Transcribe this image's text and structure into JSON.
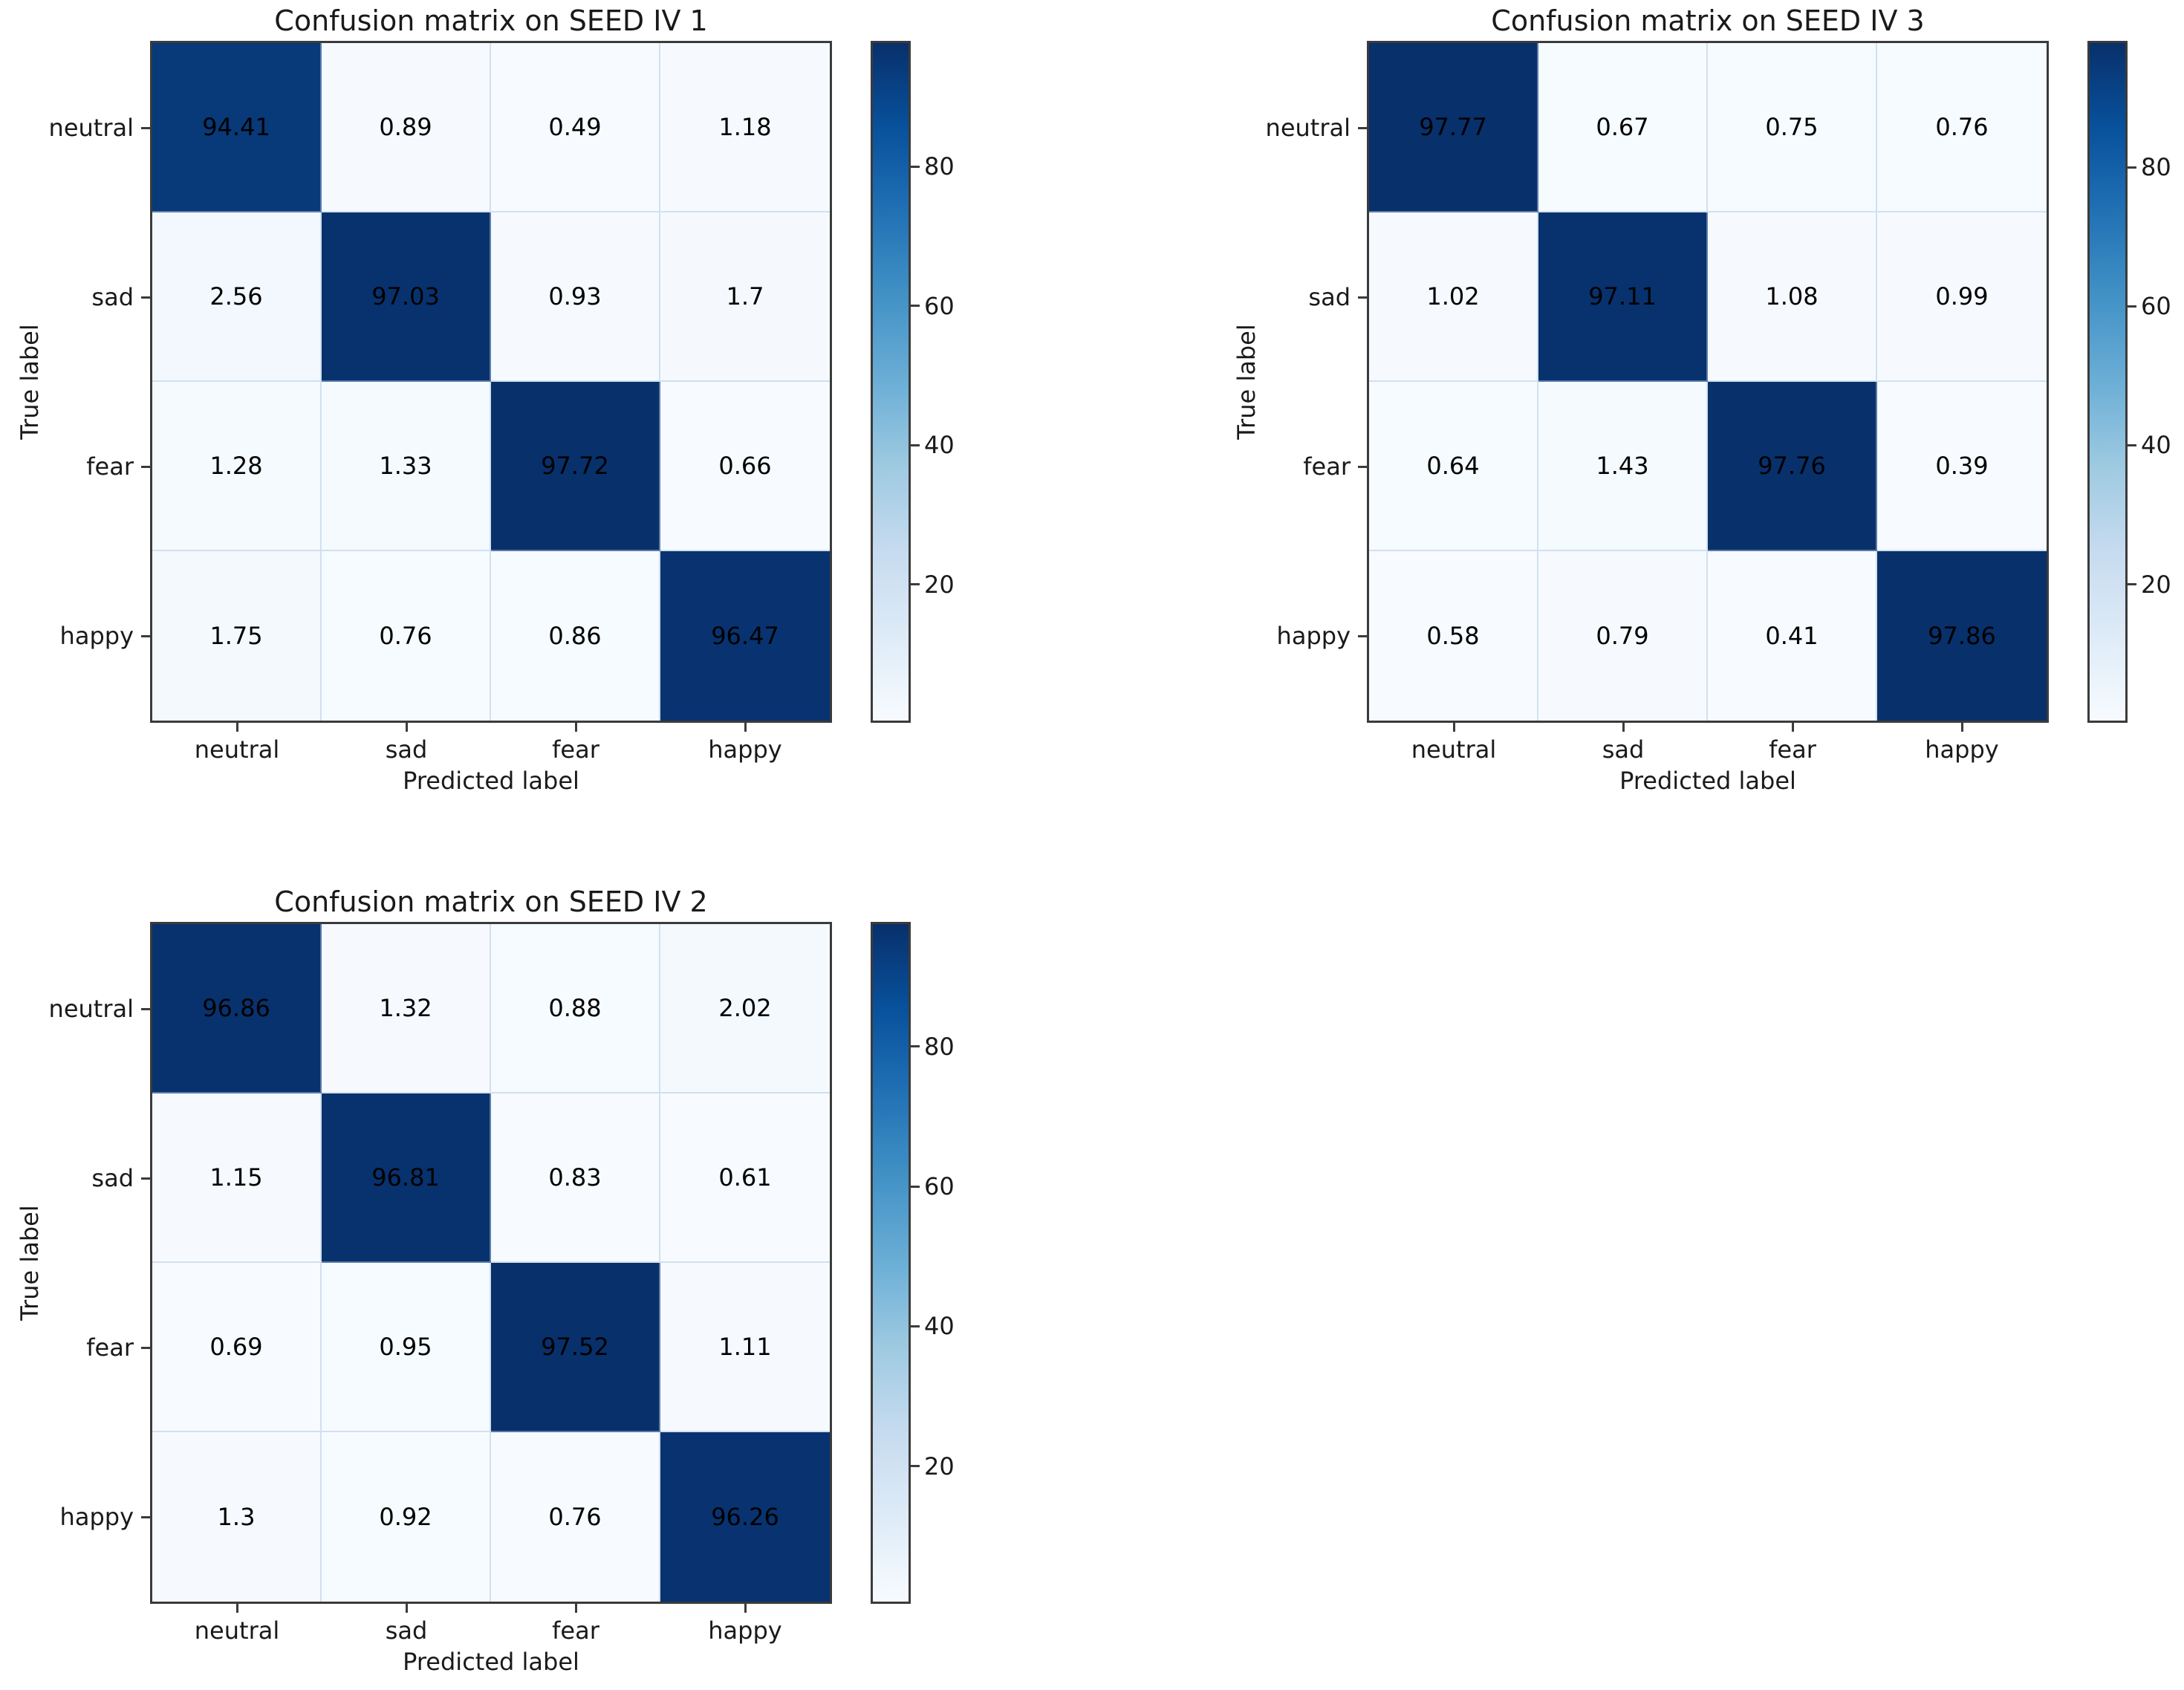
{
  "figure": {
    "background": "#ffffff",
    "layout": "2x2 grid, subplots at top-left, top-right, bottom-left; bottom-right empty"
  },
  "style": {
    "colormap": "Blues",
    "colormap_stops": [
      "#f7fbff",
      "#deebf7",
      "#c6dbef",
      "#9ecae1",
      "#6baed6",
      "#4292c6",
      "#2171b5",
      "#08519c",
      "#08306b"
    ],
    "spine_color": "#3b3b3b",
    "title_color": "#1a1a1a",
    "tick_label_color": "#1a1a1a",
    "cell_text_color": "#000000",
    "cell_seam_color": "rgba(173,197,224,0.5)"
  },
  "chart_data": [
    {
      "type": "heatmap",
      "title": "Confusion matrix on SEED IV 1",
      "position": "top-left",
      "xlabel": "Predicted label",
      "ylabel": "True label",
      "x_categories": [
        "neutral",
        "sad",
        "fear",
        "happy"
      ],
      "y_categories": [
        "neutral",
        "sad",
        "fear",
        "happy"
      ],
      "matrix": [
        [
          94.41,
          0.89,
          0.49,
          1.18
        ],
        [
          2.56,
          97.03,
          0.93,
          1.7
        ],
        [
          1.28,
          1.33,
          97.72,
          0.66
        ],
        [
          1.75,
          0.76,
          0.86,
          96.47
        ]
      ],
      "colorbar_ticks": [
        20,
        40,
        60,
        80
      ],
      "legend_position": "colorbar-right",
      "grid": false
    },
    {
      "type": "heatmap",
      "title": "Confusion matrix on SEED IV 3",
      "position": "top-right",
      "xlabel": "Predicted label",
      "ylabel": "True label",
      "x_categories": [
        "neutral",
        "sad",
        "fear",
        "happy"
      ],
      "y_categories": [
        "neutral",
        "sad",
        "fear",
        "happy"
      ],
      "matrix": [
        [
          97.77,
          0.67,
          0.75,
          0.76
        ],
        [
          1.02,
          97.11,
          1.08,
          0.99
        ],
        [
          0.64,
          1.43,
          97.76,
          0.39
        ],
        [
          0.58,
          0.79,
          0.41,
          97.86
        ]
      ],
      "colorbar_ticks": [
        20,
        40,
        60,
        80
      ],
      "legend_position": "colorbar-right",
      "grid": false
    },
    {
      "type": "heatmap",
      "title": "Confusion matrix on SEED IV 2",
      "position": "bottom-left",
      "xlabel": "Predicted label",
      "ylabel": "True label",
      "x_categories": [
        "neutral",
        "sad",
        "fear",
        "happy"
      ],
      "y_categories": [
        "neutral",
        "sad",
        "fear",
        "happy"
      ],
      "matrix": [
        [
          96.86,
          1.32,
          0.88,
          2.02
        ],
        [
          1.15,
          96.81,
          0.83,
          0.61
        ],
        [
          0.69,
          0.95,
          97.52,
          1.11
        ],
        [
          1.3,
          0.92,
          0.76,
          96.26
        ]
      ],
      "colorbar_ticks": [
        20,
        40,
        60,
        80
      ],
      "legend_position": "colorbar-right",
      "grid": false
    }
  ]
}
